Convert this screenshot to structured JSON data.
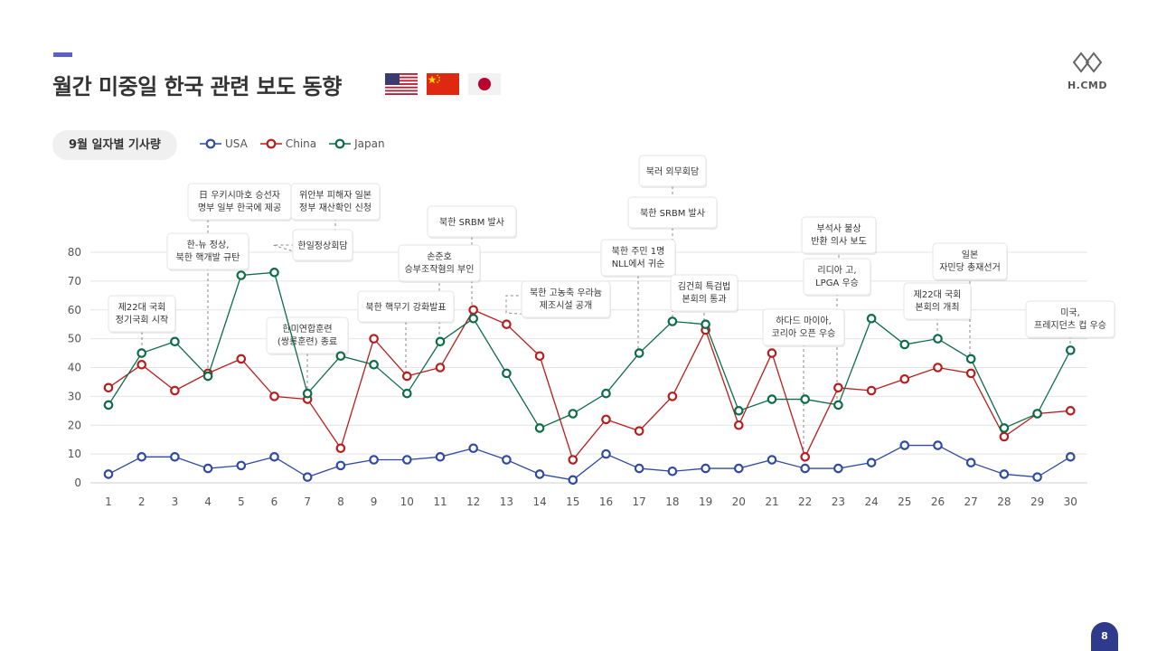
{
  "page": {
    "title": "월간 미중일 한국 관련 보도 동향",
    "subtitle": "9월 일자별 기사량",
    "page_number": "8"
  },
  "logo": {
    "text": "H.CMD"
  },
  "flags": [
    "usa-flag-icon",
    "china-flag-icon",
    "japan-flag-icon"
  ],
  "colors": {
    "usa": "#2f4aa0",
    "china": "#b81d1d",
    "japan": "#0d6b48",
    "accent": "#5b62c4",
    "badge": "#2e3a8c"
  },
  "chart_data": {
    "type": "line",
    "x": [
      1,
      2,
      3,
      4,
      5,
      6,
      7,
      8,
      9,
      10,
      11,
      12,
      13,
      14,
      15,
      16,
      17,
      18,
      19,
      20,
      21,
      22,
      23,
      24,
      25,
      26,
      27,
      28,
      29,
      30
    ],
    "ylim": [
      0,
      80
    ],
    "yticks": [
      0,
      10,
      20,
      30,
      40,
      50,
      60,
      70,
      80
    ],
    "grid": true,
    "legend_position": "top-left",
    "series": [
      {
        "name": "USA",
        "color": "#2f4aa0",
        "values": [
          3,
          9,
          9,
          5,
          6,
          9,
          2,
          6,
          8,
          8,
          9,
          12,
          8,
          3,
          1,
          10,
          5,
          4,
          5,
          5,
          8,
          5,
          5,
          7,
          13,
          13,
          7,
          3,
          2,
          9
        ]
      },
      {
        "name": "China",
        "color": "#b81d1d",
        "values": [
          33,
          41,
          32,
          38,
          43,
          30,
          29,
          12,
          50,
          37,
          40,
          60,
          55,
          44,
          8,
          22,
          18,
          30,
          53,
          20,
          45,
          9,
          33,
          32,
          36,
          40,
          38,
          16,
          24,
          25
        ]
      },
      {
        "name": "Japan",
        "color": "#0d6b48",
        "values": [
          27,
          45,
          49,
          37,
          72,
          73,
          31,
          44,
          41,
          31,
          49,
          57,
          38,
          19,
          24,
          31,
          45,
          56,
          55,
          25,
          29,
          29,
          27,
          57,
          48,
          50,
          43,
          19,
          24,
          46
        ]
      }
    ],
    "annotations": [
      {
        "x": 2,
        "text": [
          "제22대 국회",
          "정기국회 시작"
        ]
      },
      {
        "x": 4,
        "text": [
          "日 우키시마호 승선자",
          "명부 일부 한국에 제공"
        ]
      },
      {
        "x": 4,
        "text": [
          "한-뉴 정상,",
          "북한 핵개발 규탄"
        ]
      },
      {
        "x": 6,
        "text": [
          "한일정상회담"
        ]
      },
      {
        "x": 7,
        "text": [
          "위안부 피해자 일본",
          "정부 재산확인 신청"
        ]
      },
      {
        "x": 7,
        "text": [
          "한미연합훈련",
          "(쌍룡훈련) 종료"
        ]
      },
      {
        "x": 10,
        "text": [
          "북한 핵무기 강화발표"
        ]
      },
      {
        "x": 12,
        "text": [
          "손준호",
          "승부조작혐의 부인"
        ]
      },
      {
        "x": 12,
        "text": [
          "북한 SRBM 발사"
        ]
      },
      {
        "x": 13,
        "text": [
          "북한 고농축 우라늄",
          "제조시설 공개"
        ]
      },
      {
        "x": 17,
        "text": [
          "북한 주민 1명",
          "NLL에서 귀순"
        ]
      },
      {
        "x": 18,
        "text": [
          "북러 외무회담"
        ]
      },
      {
        "x": 18,
        "text": [
          "북한 SRBM 발사"
        ]
      },
      {
        "x": 19,
        "text": [
          "김건희 특검법",
          "본회의 통과"
        ]
      },
      {
        "x": 22,
        "text": [
          "하다드 마이아,",
          "코리아 오픈 우승"
        ]
      },
      {
        "x": 23,
        "text": [
          "부석사 불상",
          "반환 의사 보도"
        ]
      },
      {
        "x": 23,
        "text": [
          "리디아 고,",
          "LPGA 우승"
        ]
      },
      {
        "x": 26,
        "text": [
          "제22대 국회",
          "본회의 개최"
        ]
      },
      {
        "x": 27,
        "text": [
          "일본",
          "자민당 총재선거"
        ]
      },
      {
        "x": 30,
        "text": [
          "미국,",
          "프레지던츠 컵 우승"
        ]
      }
    ]
  }
}
